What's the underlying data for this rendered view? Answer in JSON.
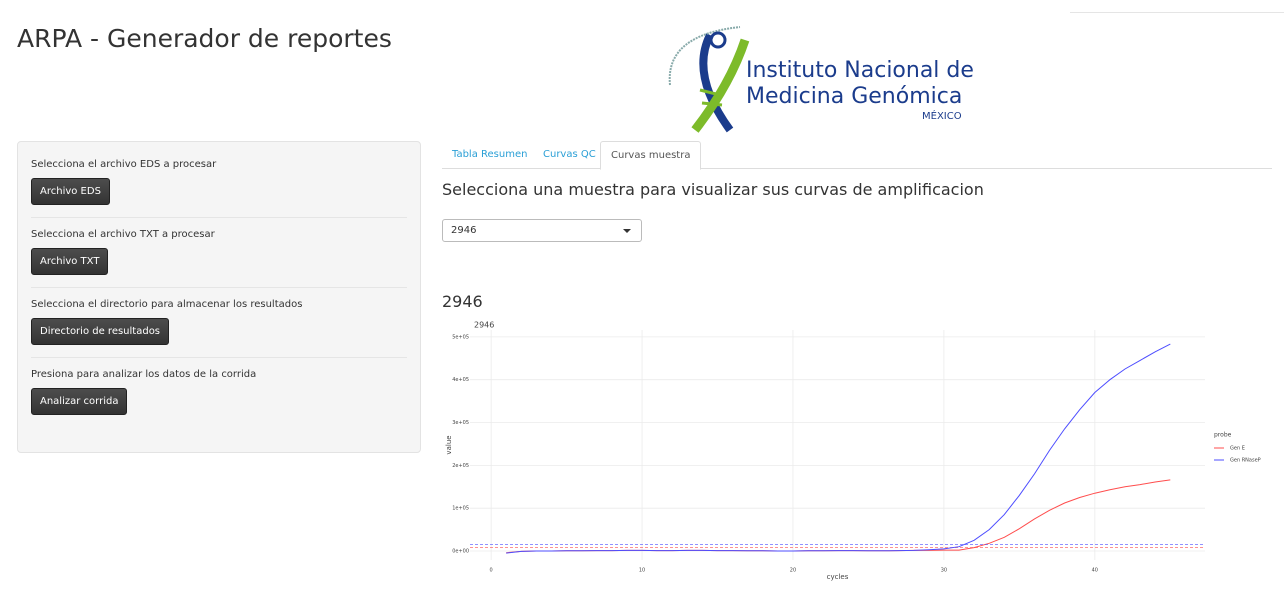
{
  "header": {
    "title": "ARPA - Generador de reportes"
  },
  "logo": {
    "lines": [
      "Instituto Nacional de",
      "Medicina Genómica",
      "MÉXICO"
    ]
  },
  "sidebar": {
    "items": [
      {
        "label": "Selecciona el archivo EDS a procesar",
        "button": "Archivo EDS"
      },
      {
        "label": "Selecciona el archivo TXT a procesar",
        "button": "Archivo TXT"
      },
      {
        "label": "Selecciona el directorio para almacenar los resultados",
        "button": "Directorio de resultados"
      },
      {
        "label": "Presiona para analizar los datos de la corrida",
        "button": "Analizar corrida"
      }
    ]
  },
  "tabs": {
    "items": [
      "Tabla Resumen",
      "Curvas QC",
      "Curvas muestra"
    ],
    "active": 2
  },
  "main": {
    "heading": "Selecciona una muestra para visualizar sus curvas de amplificacion",
    "select_value": "2946",
    "plot_heading": "2946"
  },
  "chart_data": {
    "type": "line",
    "title": "2946",
    "x_label": "cycles",
    "y_label": "value",
    "x": [
      1,
      2,
      3,
      4,
      5,
      6,
      7,
      8,
      9,
      10,
      11,
      12,
      13,
      14,
      15,
      16,
      17,
      18,
      19,
      20,
      21,
      22,
      23,
      24,
      25,
      26,
      27,
      28,
      29,
      30,
      31,
      32,
      33,
      34,
      35,
      36,
      37,
      38,
      39,
      40,
      41,
      42,
      43,
      44,
      45
    ],
    "series": [
      {
        "name": "Gen E",
        "color": "#ff4d4d",
        "threshold": 8000,
        "values": [
          -4000,
          -1000,
          0,
          0,
          500,
          500,
          1000,
          1000,
          1500,
          1500,
          1000,
          1000,
          1500,
          1500,
          1000,
          1000,
          500,
          500,
          0,
          0,
          500,
          500,
          1000,
          1000,
          500,
          500,
          1000,
          1500,
          1500,
          2000,
          2000,
          8000,
          18000,
          32000,
          52000,
          75000,
          95000,
          112000,
          125000,
          135000,
          143000,
          150000,
          155000,
          161000,
          166000
        ]
      },
      {
        "name": "Gen RNaseP",
        "color": "#4d4dff",
        "threshold": 15000,
        "values": [
          -5000,
          -1000,
          0,
          0,
          500,
          500,
          1000,
          1000,
          1500,
          1500,
          1000,
          1000,
          1500,
          1500,
          1000,
          1000,
          500,
          500,
          0,
          0,
          500,
          500,
          1000,
          1000,
          500,
          500,
          1000,
          1500,
          3000,
          5000,
          10000,
          25000,
          50000,
          85000,
          130000,
          180000,
          235000,
          285000,
          330000,
          370000,
          400000,
          425000,
          445000,
          465000,
          483000
        ]
      }
    ],
    "legend": {
      "title": "probe",
      "position": "right"
    },
    "grid": true,
    "xlim": [
      -1.4,
      47.3
    ],
    "xticks": [
      0,
      10,
      20,
      30,
      40
    ],
    "ylim": [
      -21000,
      516000
    ],
    "yticks": [
      {
        "value": 0,
        "label": "0e+00"
      },
      {
        "value": 100000,
        "label": "1e+05"
      },
      {
        "value": 200000,
        "label": "2e+05"
      },
      {
        "value": 300000,
        "label": "3e+05"
      },
      {
        "value": 400000,
        "label": "4e+05"
      },
      {
        "value": 500000,
        "label": "5e+05"
      }
    ]
  }
}
